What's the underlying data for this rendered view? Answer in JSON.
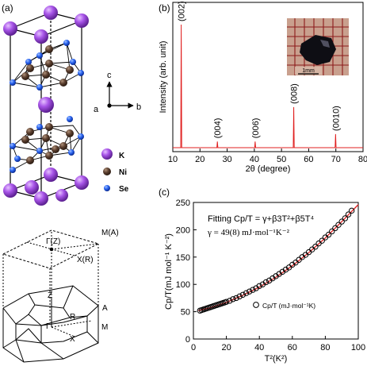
{
  "panel_a": {
    "label": "(a)",
    "axes": {
      "c": "c",
      "a": "a",
      "b": "b"
    },
    "legend": [
      {
        "name": "K",
        "color": "#9b3fd0"
      },
      {
        "name": "Ni",
        "color": "#4a3528"
      },
      {
        "name": "Se",
        "color": "#1f4fe0"
      }
    ]
  },
  "bz": {
    "points": {
      "gamma_z": "Γ(Z)",
      "m_a": "M(A)",
      "x_r": "X(R)",
      "z": "Z",
      "a": "A",
      "r": "R",
      "gamma": "Γ",
      "m": "M",
      "x": "X"
    }
  },
  "chart_data": [
    {
      "panel": "(b)",
      "type": "line",
      "xlabel": "2θ (degree)",
      "ylabel": "Intensity (arb. unit)",
      "xlim": [
        10,
        80
      ],
      "xticks": [
        10,
        20,
        30,
        40,
        50,
        60,
        70,
        80
      ],
      "color": "#e02020",
      "peaks": [
        {
          "x": 13.1,
          "height": 1.0,
          "label": "(002)"
        },
        {
          "x": 26.4,
          "height": 0.05,
          "label": "(004)"
        },
        {
          "x": 40.3,
          "height": 0.05,
          "label": "(006)"
        },
        {
          "x": 54.5,
          "height": 0.33,
          "label": "(008)"
        },
        {
          "x": 69.9,
          "height": 0.11,
          "label": "(0010)"
        }
      ],
      "inset": {
        "scale_label": "1mm"
      }
    },
    {
      "panel": "(c)",
      "type": "scatter",
      "xlabel": "T²(K²)",
      "ylabel": "Cp/T(mJ mol⁻¹ K⁻²)",
      "xlim": [
        0,
        100
      ],
      "ylim": [
        0,
        250
      ],
      "xticks": [
        0,
        20,
        40,
        60,
        80,
        100
      ],
      "yticks": [
        0,
        50,
        100,
        150,
        200,
        250
      ],
      "fit_formula": "Fitting Cp/T = γ+β3T²+β5T⁴",
      "gamma_text": "γ = 49(8) mJ·mol⁻¹K⁻²",
      "legend": "Cp/T (mJ·mol⁻¹K)",
      "fit_color": "#e02020",
      "series": {
        "x": [
          4,
          5,
          6,
          7,
          8,
          9,
          10,
          11,
          12,
          13,
          14,
          15,
          16,
          17,
          18,
          19,
          20,
          22,
          24,
          26,
          28,
          30,
          32,
          34,
          36,
          38,
          40,
          42,
          44,
          46,
          48,
          50,
          52,
          54,
          56,
          58,
          60,
          62,
          64,
          66,
          68,
          70,
          72,
          74,
          76,
          78,
          80,
          82,
          84,
          86,
          88,
          90,
          92,
          94,
          96
        ],
        "y": [
          52,
          53,
          54,
          55,
          56,
          57,
          58,
          59,
          60,
          61,
          62,
          63,
          64,
          65,
          66,
          67,
          68,
          70,
          73,
          75,
          78,
          81,
          84,
          87,
          90,
          93,
          97,
          100,
          104,
          107,
          111,
          115,
          119,
          123,
          127,
          131,
          136,
          140,
          145,
          150,
          154,
          159,
          164,
          169,
          175,
          180,
          186,
          191,
          197,
          203,
          209,
          215,
          221,
          228,
          235
        ]
      },
      "fit": {
        "x": [
          3,
          10,
          20,
          30,
          40,
          50,
          60,
          70,
          80,
          90,
          100
        ],
        "y": [
          52,
          57,
          67,
          80,
          95,
          113,
          134,
          158,
          185,
          215,
          246
        ]
      }
    }
  ]
}
